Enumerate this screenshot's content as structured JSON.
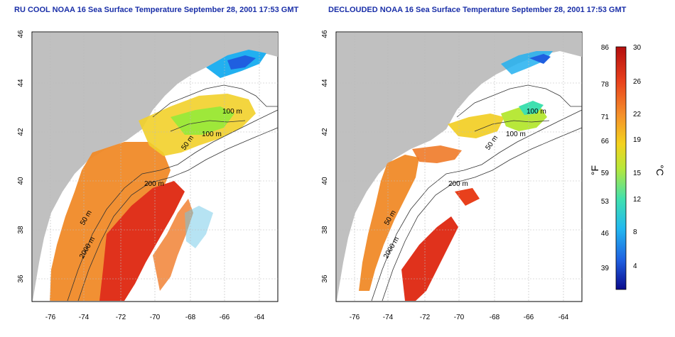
{
  "left_panel": {
    "title": "RU COOL NOAA 16 Sea Surface Temperature September 28, 2001 17:53 GMT"
  },
  "right_panel": {
    "title": "DECLOUDED NOAA 16 Sea Surface Temperature September 28, 2001 17:53 GMT"
  },
  "axes": {
    "lon_ticks": [
      "-76",
      "-74",
      "-72",
      "-70",
      "-68",
      "-66",
      "-64"
    ],
    "lat_ticks": [
      "36",
      "38",
      "40",
      "42",
      "44",
      "46"
    ]
  },
  "contour_labels": [
    "100 m",
    "100 m",
    "50 m",
    "200 m",
    "50 m",
    "2000 m"
  ],
  "colorbar": {
    "f_label": "°F",
    "c_label": "°C",
    "f_ticks": [
      "86",
      "78",
      "71",
      "66",
      "59",
      "53",
      "46",
      "39"
    ],
    "c_ticks": [
      "30",
      "26",
      "22",
      "19",
      "15",
      "12",
      "8",
      "4"
    ],
    "colors": [
      "#0a0a8c",
      "#1f5fe0",
      "#22b8f0",
      "#3fe0b0",
      "#b8e83a",
      "#f4d21e",
      "#f5902a",
      "#e8401c",
      "#b40e0e"
    ]
  },
  "land_color": "#c0c0c0"
}
